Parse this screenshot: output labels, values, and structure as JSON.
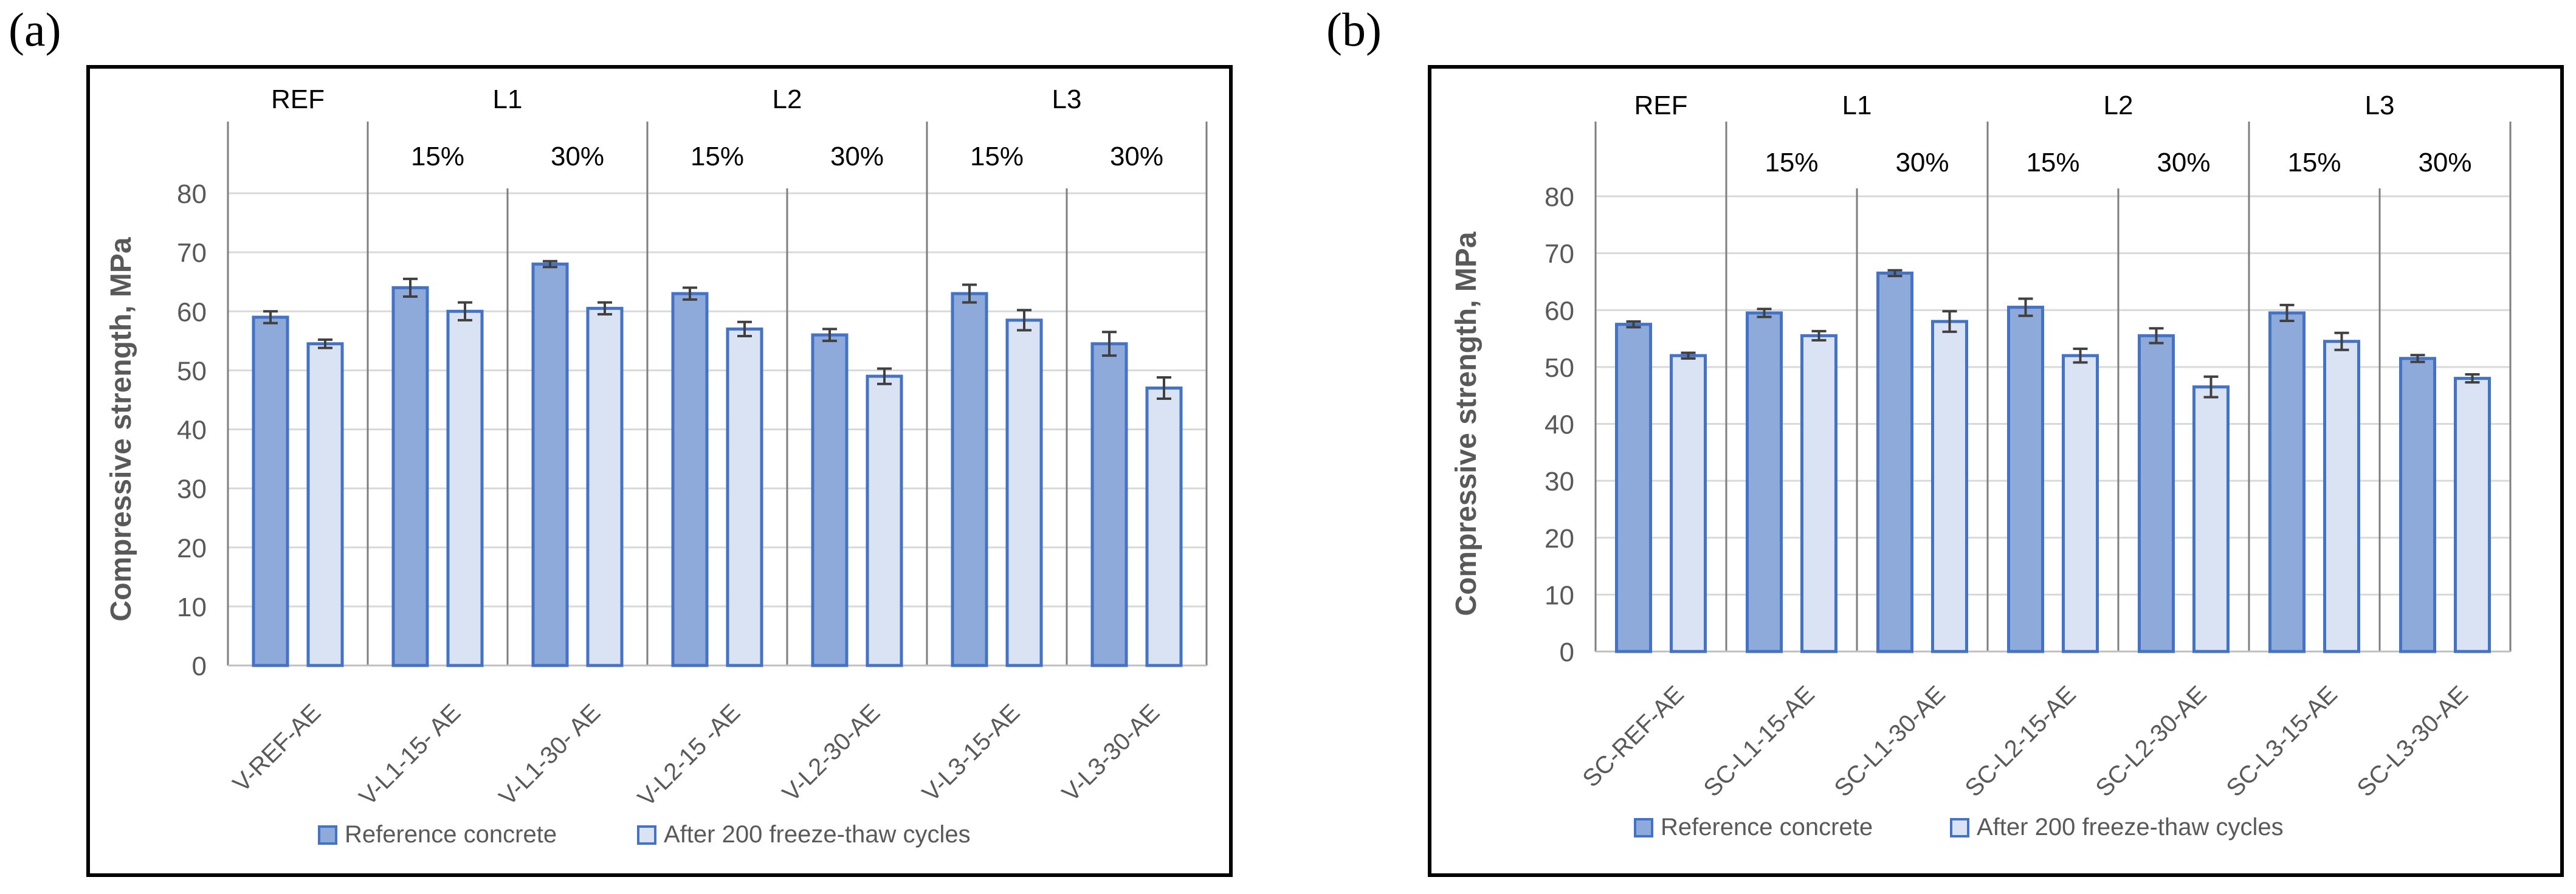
{
  "panels": [
    {
      "label": "(a)"
    },
    {
      "label": "(b)"
    }
  ],
  "chart_data": [
    {
      "type": "bar",
      "panel": "(a)",
      "title": "",
      "xlabel": "",
      "ylabel": "Compressive strength, MPa",
      "ylim": [
        0,
        80
      ],
      "yticks": [
        0,
        10,
        20,
        30,
        40,
        50,
        60,
        70,
        80
      ],
      "grid": true,
      "legend_position": "bottom",
      "categories": [
        "V-REF-AE",
        "V-L1-15- AE",
        "V-L1-30- AE",
        "V-L2-15 -AE",
        "V-L2-30-AE",
        "V-L3-15-AE",
        "V-L3-30-AE"
      ],
      "group_labels": [
        "REF",
        "L1",
        "L2",
        "L3"
      ],
      "percent_labels": [
        "15%",
        "30%",
        "15%",
        "30%",
        "15%",
        "30%"
      ],
      "series": [
        {
          "name": "Reference concrete",
          "color": "#8eaadb",
          "stroke": "#4472c4",
          "values": [
            59,
            64,
            68,
            63,
            56,
            63,
            54.5
          ],
          "errors": [
            1,
            1.5,
            0.5,
            1,
            1,
            1.5,
            2
          ]
        },
        {
          "name": "After 200 freeze-thaw cycles",
          "color": "#dae3f3",
          "stroke": "#4472c4",
          "values": [
            54.5,
            60,
            60.5,
            57,
            49,
            58.5,
            47
          ],
          "errors": [
            0.7,
            1.5,
            1,
            1.2,
            1.3,
            1.7,
            1.8
          ]
        }
      ]
    },
    {
      "type": "bar",
      "panel": "(b)",
      "title": "",
      "xlabel": "",
      "ylabel": "Compressive strength, MPa",
      "ylim": [
        0,
        80
      ],
      "yticks": [
        0,
        10,
        20,
        30,
        40,
        50,
        60,
        70,
        80
      ],
      "grid": true,
      "legend_position": "bottom",
      "categories": [
        "SC-REF-AE",
        "SC-L1-15-AE",
        "SC-L1-30-AE",
        "SC-L2-15-AE",
        "SC-L2-30-AE",
        "SC-L3-15-AE",
        "SC-L3-30-AE"
      ],
      "group_labels": [
        "REF",
        "L1",
        "L2",
        "L3"
      ],
      "percent_labels": [
        "15%",
        "30%",
        "15%",
        "30%",
        "15%",
        "30%"
      ],
      "series": [
        {
          "name": "Reference concrete",
          "color": "#8eaadb",
          "stroke": "#4472c4",
          "values": [
            57.5,
            59.5,
            66.5,
            60.5,
            55.5,
            59.5,
            51.5
          ],
          "errors": [
            0.5,
            0.7,
            0.5,
            1.5,
            1.3,
            1.4,
            0.6
          ]
        },
        {
          "name": "After 200 freeze-thaw cycles",
          "color": "#dae3f3",
          "stroke": "#4472c4",
          "values": [
            52,
            55.5,
            58,
            52,
            46.5,
            54.5,
            48
          ],
          "errors": [
            0.5,
            0.8,
            1.8,
            1.2,
            1.8,
            1.5,
            0.7
          ]
        }
      ]
    }
  ]
}
